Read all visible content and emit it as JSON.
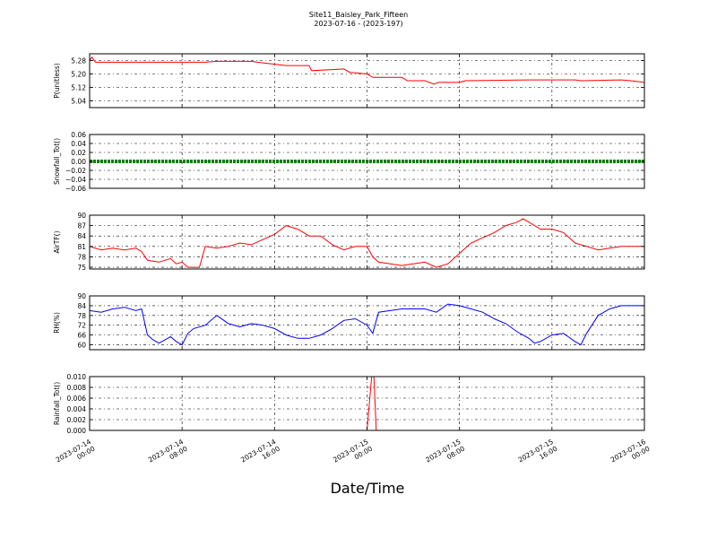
{
  "header": {
    "title": "Site11_Baisley_Park_Fifteen",
    "subtitle": "2023-07-16 - (2023-197)"
  },
  "chart_data": {
    "type": "line",
    "title": "Site11_Baisley_Park_Fifteen",
    "subtitle": "2023-07-16 - (2023-197)",
    "xlabel": "Date/Time",
    "x_ticks": [
      "2023-07-14 00:00",
      "2023-07-14 08:00",
      "2023-07-14 16:00",
      "2023-07-15 00:00",
      "2023-07-15 08:00",
      "2023-07-15 16:00",
      "2023-07-16 00:00"
    ],
    "x_tick_lines": [
      [
        "2023-07-14",
        "00:00"
      ],
      [
        "2023-07-14",
        "08:00"
      ],
      [
        "2023-07-14",
        "16:00"
      ],
      [
        "2023-07-15",
        "00:00"
      ],
      [
        "2023-07-15",
        "08:00"
      ],
      [
        "2023-07-15",
        "16:00"
      ],
      [
        "2023-07-16",
        "00:00"
      ]
    ],
    "x_range_hours": [
      0,
      48
    ],
    "grid": true,
    "panels": [
      {
        "ylabel": "P(unitless)",
        "ylim": [
          5.0,
          5.32
        ],
        "yticks": [
          "5.28",
          "5.20",
          "5.12",
          "5.04"
        ],
        "ytick_values": [
          5.28,
          5.2,
          5.12,
          5.04
        ],
        "color": "#ff0000",
        "series": [
          {
            "name": "",
            "points": [
              [
                0,
                5.28
              ],
              [
                0.2,
                5.3
              ],
              [
                0.5,
                5.27
              ],
              [
                3,
                5.27
              ],
              [
                6,
                5.27
              ],
              [
                10,
                5.27
              ],
              [
                11,
                5.275
              ],
              [
                14,
                5.275
              ],
              [
                14.5,
                5.27
              ],
              [
                17,
                5.25
              ],
              [
                19,
                5.25
              ],
              [
                19.2,
                5.22
              ],
              [
                22,
                5.23
              ],
              [
                22.5,
                5.21
              ],
              [
                24,
                5.2
              ],
              [
                24.5,
                5.18
              ],
              [
                27,
                5.18
              ],
              [
                27.5,
                5.16
              ],
              [
                29,
                5.16
              ],
              [
                29.8,
                5.14
              ],
              [
                30.2,
                5.15
              ],
              [
                30.5,
                5.15
              ],
              [
                32,
                5.15
              ],
              [
                32.5,
                5.16
              ],
              [
                38,
                5.165
              ],
              [
                42,
                5.165
              ],
              [
                42.5,
                5.16
              ],
              [
                46,
                5.165
              ],
              [
                46.8,
                5.16
              ],
              [
                48,
                5.15
              ]
            ]
          }
        ]
      },
      {
        "ylabel": "Snowfall_Tot()",
        "ylim": [
          -0.06,
          0.06
        ],
        "yticks": [
          "0.06",
          "0.04",
          "0.02",
          "0.00",
          "−0.02",
          "−0.04",
          "−0.06"
        ],
        "ytick_values": [
          0.06,
          0.04,
          0.02,
          0.0,
          -0.02,
          -0.04,
          -0.06
        ],
        "color": "#008000",
        "series": [
          {
            "name": "",
            "points": [
              [
                0,
                0
              ],
              [
                48,
                0
              ]
            ]
          }
        ]
      },
      {
        "ylabel": "AirTF()",
        "ylim": [
          74.5,
          90
        ],
        "yticks": [
          "90",
          "87",
          "84",
          "81",
          "78",
          "75"
        ],
        "ytick_values": [
          90,
          87,
          84,
          81,
          78,
          75
        ],
        "color": "#ff0000",
        "series": [
          {
            "name": "",
            "points": [
              [
                0,
                81
              ],
              [
                1,
                80
              ],
              [
                2,
                80.5
              ],
              [
                3,
                80
              ],
              [
                4,
                80.5
              ],
              [
                4.5,
                79.5
              ],
              [
                5,
                77
              ],
              [
                6,
                76.5
              ],
              [
                7,
                77.5
              ],
              [
                7.5,
                76
              ],
              [
                8,
                76.5
              ],
              [
                8.5,
                75
              ],
              [
                9,
                75
              ],
              [
                9.5,
                75
              ],
              [
                10,
                81
              ],
              [
                11,
                80.5
              ],
              [
                12,
                81
              ],
              [
                13,
                82
              ],
              [
                14,
                81.5
              ],
              [
                15,
                83
              ],
              [
                16,
                84.5
              ],
              [
                17,
                87
              ],
              [
                18,
                86
              ],
              [
                19,
                84
              ],
              [
                20,
                84
              ],
              [
                21,
                81.5
              ],
              [
                22,
                80
              ],
              [
                23,
                81
              ],
              [
                24,
                81
              ],
              [
                24.5,
                78
              ],
              [
                25,
                76.5
              ],
              [
                26,
                76
              ],
              [
                27,
                75.5
              ],
              [
                28,
                76
              ],
              [
                29,
                76.5
              ],
              [
                30,
                75
              ],
              [
                31,
                76
              ],
              [
                32,
                79
              ],
              [
                33,
                82
              ],
              [
                34,
                83.5
              ],
              [
                35,
                85
              ],
              [
                36,
                87
              ],
              [
                37,
                88
              ],
              [
                37.5,
                89
              ],
              [
                38,
                88
              ],
              [
                39,
                86
              ],
              [
                40,
                86
              ],
              [
                41,
                85
              ],
              [
                42,
                82
              ],
              [
                43,
                81
              ],
              [
                44,
                80
              ],
              [
                45,
                80.5
              ],
              [
                46,
                81
              ],
              [
                47,
                81
              ],
              [
                48,
                81
              ]
            ]
          }
        ]
      },
      {
        "ylabel": "RH(%)",
        "ylim": [
          57,
          90
        ],
        "yticks": [
          "90",
          "84",
          "78",
          "72",
          "66",
          "60"
        ],
        "ytick_values": [
          90,
          84,
          78,
          72,
          66,
          60
        ],
        "color": "#0000ff",
        "series": [
          {
            "name": "",
            "points": [
              [
                0,
                81
              ],
              [
                1,
                80
              ],
              [
                2,
                82
              ],
              [
                3,
                83
              ],
              [
                4,
                81
              ],
              [
                4.5,
                82
              ],
              [
                5,
                66
              ],
              [
                5.5,
                63
              ],
              [
                6,
                61
              ],
              [
                7,
                65
              ],
              [
                7.5,
                62
              ],
              [
                8,
                60
              ],
              [
                8.5,
                67
              ],
              [
                9,
                70
              ],
              [
                10,
                72
              ],
              [
                11,
                78
              ],
              [
                12,
                73
              ],
              [
                13,
                71
              ],
              [
                14,
                73
              ],
              [
                15,
                72
              ],
              [
                16,
                70
              ],
              [
                17,
                66
              ],
              [
                18,
                64
              ],
              [
                19,
                64
              ],
              [
                20,
                66
              ],
              [
                21,
                70
              ],
              [
                22,
                75
              ],
              [
                23,
                76
              ],
              [
                24,
                72
              ],
              [
                24.5,
                67
              ],
              [
                25,
                80
              ],
              [
                26,
                81
              ],
              [
                27,
                82
              ],
              [
                28,
                82
              ],
              [
                29,
                82
              ],
              [
                30,
                80
              ],
              [
                31,
                85
              ],
              [
                32,
                84
              ],
              [
                33,
                82
              ],
              [
                34,
                80
              ],
              [
                35,
                76
              ],
              [
                36,
                73
              ],
              [
                37,
                68
              ],
              [
                38,
                64
              ],
              [
                38.5,
                61
              ],
              [
                39,
                62
              ],
              [
                40,
                66
              ],
              [
                41,
                67
              ],
              [
                42,
                62
              ],
              [
                42.5,
                60
              ],
              [
                43,
                67
              ],
              [
                44,
                78
              ],
              [
                45,
                82
              ],
              [
                46,
                84
              ],
              [
                47,
                84
              ],
              [
                48,
                84
              ]
            ]
          }
        ]
      },
      {
        "ylabel": "Rainfall_Tot()",
        "ylim": [
          0,
          0.01
        ],
        "yticks": [
          "0.010",
          "0.008",
          "0.006",
          "0.004",
          "0.002",
          "0.000"
        ],
        "ytick_values": [
          0.01,
          0.008,
          0.006,
          0.004,
          0.002,
          0.0
        ],
        "color": "#ff0000",
        "series": [
          {
            "name": "",
            "points": [
              [
                0,
                0
              ],
              [
                24,
                0
              ],
              [
                24.4,
                0.01
              ],
              [
                24.6,
                0.01
              ],
              [
                24.8,
                0
              ],
              [
                48,
                0
              ]
            ]
          }
        ]
      }
    ]
  }
}
